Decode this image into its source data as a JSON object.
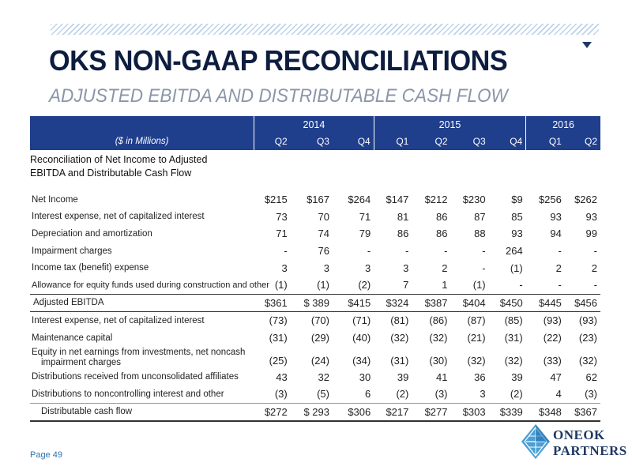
{
  "header": {
    "title": "OKS NON-GAAP RECONCILIATIONS",
    "subtitle": "ADJUSTED EBITDA AND DISTRIBUTABLE CASH FLOW"
  },
  "table": {
    "units_label": "($ in Millions)",
    "years": [
      "2014",
      "2015",
      "2016"
    ],
    "quarters": [
      "Q2",
      "Q3",
      "Q4",
      "Q1",
      "Q2",
      "Q3",
      "Q4",
      "Q1",
      "Q2"
    ],
    "section_title": "Reconciliation of Net Income to Adjusted EBITDA and Distributable Cash Flow",
    "rows": [
      {
        "label": "Net Income",
        "values": [
          "$215",
          "$167",
          "$264",
          "$147",
          "$212",
          "$230",
          "$9",
          "$256",
          "$262"
        ]
      },
      {
        "label": "Interest expense, net of capitalized interest",
        "values": [
          "73",
          "70",
          "71",
          "81",
          "86",
          "87",
          "85",
          "93",
          "93"
        ]
      },
      {
        "label": "Depreciation and amortization",
        "values": [
          "71",
          "74",
          "79",
          "86",
          "86",
          "88",
          "93",
          "94",
          "99"
        ]
      },
      {
        "label": "Impairment charges",
        "values": [
          "-",
          "76",
          "-",
          "-",
          "-",
          "-",
          "264",
          "-",
          "-"
        ]
      },
      {
        "label": "Income tax (benefit) expense",
        "values": [
          "3",
          "3",
          "3",
          "3",
          "2",
          "-",
          "(1)",
          "2",
          "2"
        ]
      },
      {
        "label": "Allowance for equity funds used during construction and other",
        "values": [
          "(1)",
          "(1)",
          "(2)",
          "7",
          "1",
          "(1)",
          "-",
          "-",
          "-"
        ]
      },
      {
        "label": "Adjusted EBITDA",
        "values": [
          "$361",
          "$ 389",
          "$415",
          "$324",
          "$387",
          "$404",
          "$450",
          "$445",
          "$456"
        ]
      },
      {
        "label": "Interest expense, net of capitalized interest",
        "values": [
          "(73)",
          "(70)",
          "(71)",
          "(81)",
          "(86)",
          "(87)",
          "(85)",
          "(93)",
          "(93)"
        ]
      },
      {
        "label": "Maintenance capital",
        "values": [
          "(31)",
          "(29)",
          "(40)",
          "(32)",
          "(32)",
          "(21)",
          "(31)",
          "(22)",
          "(23)"
        ]
      },
      {
        "label": "Equity in net earnings from investments, net noncash",
        "label2": "impairment charges",
        "values": [
          "(25)",
          "(24)",
          "(34)",
          "(31)",
          "(30)",
          "(32)",
          "(32)",
          "(33)",
          "(32)"
        ]
      },
      {
        "label": "Distributions received from unconsolidated affiliates",
        "values": [
          "43",
          "32",
          "30",
          "39",
          "41",
          "36",
          "39",
          "47",
          "62"
        ]
      },
      {
        "label": "Distributions to noncontrolling interest and other",
        "values": [
          "(3)",
          "(5)",
          "6",
          "(2)",
          "(3)",
          "3",
          "(2)",
          "4",
          "(3)"
        ]
      },
      {
        "label": "Distributable cash flow",
        "values": [
          "$272",
          "$ 293",
          "$306",
          "$217",
          "$277",
          "$303",
          "$339",
          "$348",
          "$367"
        ]
      }
    ]
  },
  "footer": {
    "page": "Page 49",
    "logo_line1": "ONEOK",
    "logo_line2": "PARTNERS"
  },
  "colors": {
    "header_blue": "#1f3e8c",
    "title_navy": "#0d1d3f",
    "subtitle_gray": "#8a96a8",
    "page_blue": "#2e74b5"
  }
}
